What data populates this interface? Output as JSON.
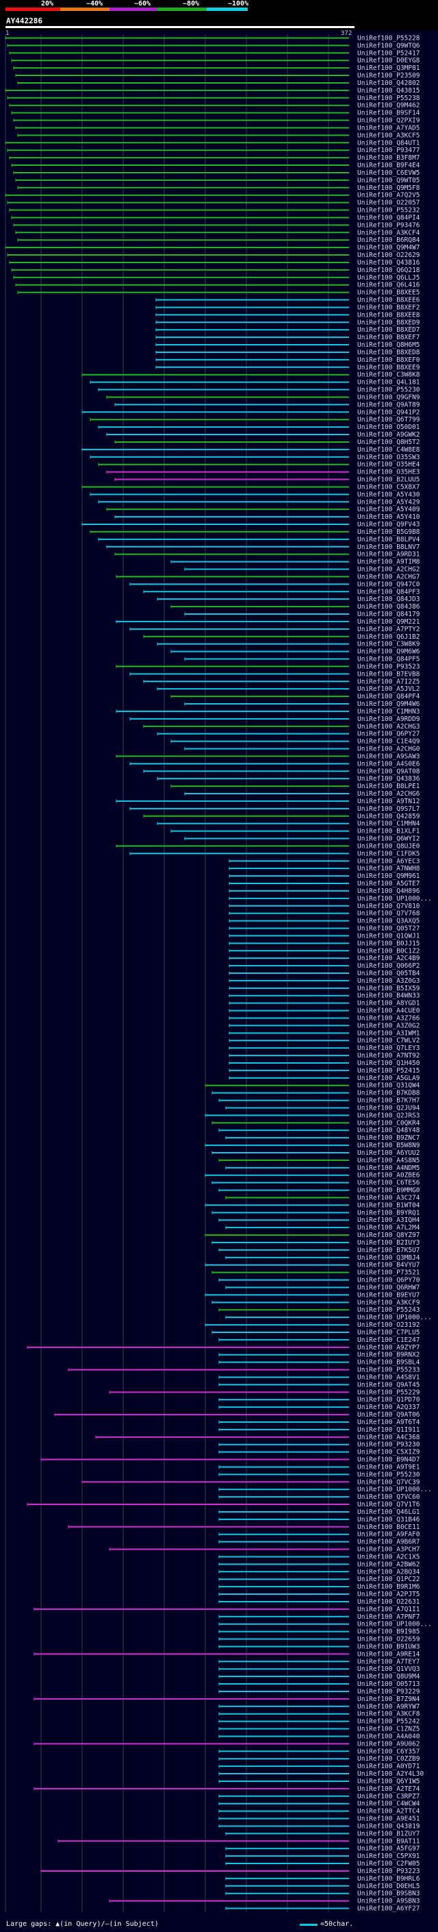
{
  "header": {
    "scale_labels": [
      "20%",
      "~40%",
      "~60%",
      "~80%",
      "~100%"
    ],
    "scale_colors": [
      "#ee1111",
      "#ee7711",
      "#aa22cc",
      "#22aa22",
      "#11ccdd"
    ],
    "query_name": "AY442286",
    "query_start": "1",
    "query_end": "372"
  },
  "colors": {
    "green": "#22b822",
    "cyan": "#11c8e0",
    "magenta": "#d030d0",
    "gridline": "#3a3a5a"
  },
  "hits": [
    "UniRef100_P55228",
    "UniRef100_Q9WTQ6",
    "UniRef100_P52417",
    "UniRef100_D0EYG8",
    "UniRef100_Q3MP81",
    "UniRef100_P23509",
    "UniRef100_Q42802",
    "UniRef100_Q43815",
    "UniRef100_P55238",
    "UniRef100_Q9M462",
    "UniRef100_B9SF14",
    "UniRef100_Q2PXI9",
    "UniRef100_A7YAD5",
    "UniRef100_A3KCF5",
    "UniRef100_Q84UT1",
    "UniRef100_P93477",
    "UniRef100_B3F8M7",
    "UniRef100_B9F4E4",
    "UniRef100_C6EVW5",
    "UniRef100_Q9WT05",
    "UniRef100_Q9M5F8",
    "UniRef100_A7Q2V5",
    "UniRef100_O22057",
    "UniRef100_P55232",
    "UniRef100_Q84PI4",
    "UniRef100_P93476",
    "UniRef100_A3KCF4",
    "UniRef100_B6RQ84",
    "UniRef100_Q9M4W7",
    "UniRef100_O22629",
    "UniRef100_Q43816",
    "UniRef100_Q6Q218",
    "UniRef100_Q6LLJ5",
    "UniRef100_Q6L416",
    "UniRef100_B8XEE5",
    "UniRef100_B8XEE6",
    "UniRef100_B8XEF2",
    "UniRef100_B8XEE8",
    "UniRef100_B8XED9",
    "UniRef100_B8XED7",
    "UniRef100_B8XEF7",
    "UniRef100_Q8H6M5",
    "UniRef100_B8XED8",
    "UniRef100_B8XEF0",
    "UniRef100_B8XEE9",
    "UniRef100_C3W8K8",
    "UniRef100_Q4L181",
    "UniRef100_P55230",
    "UniRef100_Q9GFN9",
    "UniRef100_Q9AT89",
    "UniRef100_Q941P2",
    "UniRef100_Q6T799",
    "UniRef100_O50D01",
    "UniRef100_A9GWK2",
    "UniRef100_Q8H5T2",
    "UniRef100_C4W8E8",
    "UniRef100_O35SW3",
    "UniRef100_O35HE4",
    "UniRef100_O35HE3",
    "UniRef100_B2LUU5",
    "UniRef100_C5X8X7",
    "UniRef100_A5Y430",
    "UniRef100_A5Y429",
    "UniRef100_A5Y409",
    "UniRef100_A5Y410",
    "UniRef100_Q9FV43",
    "UniRef100_B5G9B8",
    "UniRef100_B8LPV4",
    "UniRef100_B8LNV7",
    "UniRef100_A9RD31",
    "UniRef100_A9TIM8",
    "UniRef100_A2CHG2",
    "UniRef100_A2CHG7",
    "UniRef100_Q947C0",
    "UniRef100_Q84PF3",
    "UniRef100_Q84JD3",
    "UniRef100_Q84J86",
    "UniRef100_Q84179",
    "UniRef100_Q9M221",
    "UniRef100_A7PTY2",
    "UniRef100_Q6J1B2",
    "UniRef100_C3W8K9",
    "UniRef100_Q9M6W6",
    "UniRef100_Q84PF5",
    "UniRef100_P93523",
    "UniRef100_B7EVB8",
    "UniRef100_A7I2Z5",
    "UniRef100_A5JVL2",
    "UniRef100_Q84PF4",
    "UniRef100_Q9M4W6",
    "UniRef100_C1MHN3",
    "UniRef100_A9RDD9",
    "UniRef100_A2CHG3",
    "UniRef100_Q6PY27",
    "UniRef100_C1E4Q9",
    "UniRef100_A2CHG0",
    "UniRef100_A9SAW3",
    "UniRef100_A4S0E6",
    "UniRef100_Q9AT08",
    "UniRef100_Q43836",
    "UniRef100_B8LPE1",
    "UniRef100_A2CHG6",
    "UniRef100_A9TN12",
    "UniRef100_Q9S7L7",
    "UniRef100_Q42859",
    "UniRef100_C1MHN4",
    "UniRef100_B1XLF1",
    "UniRef100_Q6WYI2",
    "UniRef100_Q8UJE0",
    "UniRef100_C1FDK5",
    "UniRef100_A6YEC3",
    "UniRef100_A7NWH8",
    "UniRef100_Q9M961",
    "UniRef100_A5GTE7",
    "UniRef100_Q4H896",
    "UniRef100_UP1000...",
    "UniRef100_Q7V810",
    "UniRef100_Q7V768",
    "UniRef100_Q3AXQ5",
    "UniRef100_Q05T27",
    "UniRef100_Q1QWJ1",
    "UniRef100_B0JJ15",
    "UniRef100_B0C1Z2",
    "UniRef100_A2C4B9",
    "UniRef100_Q066P2",
    "UniRef100_Q05TB4",
    "UniRef100_A3Z0G3",
    "UniRef100_B5IX59",
    "UniRef100_B4WN33",
    "UniRef100_A8YGD1",
    "UniRef100_A4CUE0",
    "UniRef100_A3Z766",
    "UniRef100_A3Z0G2",
    "UniRef100_A3IWM1",
    "UniRef100_C7WLV2",
    "UniRef100_Q7LEY3",
    "UniRef100_A7NT92",
    "UniRef100_Q1H450",
    "UniRef100_P52415",
    "UniRef100_A5GLA9",
    "UniRef100_Q31QW4",
    "UniRef100_B7KDB8",
    "UniRef100_B7K7H7",
    "UniRef100_Q2JU94",
    "UniRef100_Q2JRS3",
    "UniRef100_C0QKR4",
    "UniRef100_Q48Y48",
    "UniRef100_B9ZNC7",
    "UniRef100_B5W8N9",
    "UniRef100_A6YUU2",
    "UniRef100_A4S8N5",
    "UniRef100_A4NDM5",
    "UniRef100_A0ZBE6",
    "UniRef100_C6TE56",
    "UniRef100_B9MMG0",
    "UniRef100_A3C274",
    "UniRef100_B1WT04",
    "UniRef100_B9YRQ1",
    "UniRef100_A3IQH4",
    "UniRef100_A7L2M4",
    "UniRef100_Q8YZ97",
    "UniRef100_B2IUY3",
    "UniRef100_B7K5U7",
    "UniRef100_Q3MBJ4",
    "UniRef100_B4VYU7",
    "UniRef100_P73521",
    "UniRef100_Q6PY70",
    "UniRef100_Q6RHW7",
    "UniRef100_B9EYU7",
    "UniRef100_A3KCF9",
    "UniRef100_P55243",
    "UniRef100_UP1000...",
    "UniRef100_O23192",
    "UniRef100_C7PLU5",
    "UniRef100_C1E247",
    "UniRef100_A9ZYP7",
    "UniRef100_B9RNX2",
    "UniRef100_B9SBL4",
    "UniRef100_P55233",
    "UniRef100_A4S8V1",
    "UniRef100_Q9AT45",
    "UniRef100_P55229",
    "UniRef100_Q1PD70",
    "UniRef100_A2Q337",
    "UniRef100_Q9AT06",
    "UniRef100_A9T6T4",
    "UniRef100_Q1I911",
    "UniRef100_A4C368",
    "UniRef100_P93230",
    "UniRef100_C5XIZ9",
    "UniRef100_B9N4D7",
    "UniRef100_A9T9E1",
    "UniRef100_P55230",
    "UniRef100_Q7VC39",
    "UniRef100_UP1000...",
    "UniRef100_Q7VC60",
    "UniRef100_Q7V1T6",
    "UniRef100_Q46LG1",
    "UniRef100_Q31B46",
    "UniRef100_B0CE11",
    "UniRef100_A9FAF0",
    "UniRef100_A9B6R7",
    "UniRef100_A3PCH7",
    "UniRef100_A2C1X5",
    "UniRef100_A2BW62",
    "UniRef100_A2BQ34",
    "UniRef100_Q1PC22",
    "UniRef100_B9R1M6",
    "UniRef100_A2PJT5",
    "UniRef100_O22631",
    "UniRef100_A7Q1I1",
    "UniRef100_A7PNF7",
    "UniRef100_UP1000...",
    "UniRef100_B9I985",
    "UniRef100_O22659",
    "UniRef100_B9IUW3",
    "UniRef100_A9RE14",
    "UniRef100_A7TEY7",
    "UniRef100_Q1VVQ3",
    "UniRef100_Q8U9M4",
    "UniRef100_O05713",
    "UniRef100_P93229",
    "UniRef100_B7Z9N4",
    "UniRef100_A9RYW7",
    "UniRef100_A3KCF8",
    "UniRef100_P55242",
    "UniRef100_C1ZNZ5",
    "UniRef100_A4A040",
    "UniRef100_A9U062",
    "UniRef100_C6Y357",
    "UniRef100_C0ZZB9",
    "UniRef100_A0YD71",
    "UniRef100_A2Y4L30",
    "UniRef100_Q6Y1W5",
    "UniRef100_A2TE74",
    "UniRef100_C3RPZ7",
    "UniRef100_C4WCW4",
    "UniRef100_A2TTC4",
    "UniRef100_A9E451",
    "UniRef100_Q43819",
    "UniRef100_B1ZUY7",
    "UniRef100_B9AT11",
    "UniRef100_A5FG97",
    "UniRef100_C5PX91",
    "UniRef100_C2FW05",
    "UniRef100_P93223",
    "UniRef100_B9HRL6",
    "UniRef100_D0EHL5",
    "UniRef100_B9SBN3",
    "UniRef100_A9SBN3",
    "UniRef100_A6YF27"
  ],
  "footer": {
    "large_gaps_text": "Large gaps: ▲(in Query)/‒(in Subject)",
    "legend_text": "=50char."
  }
}
